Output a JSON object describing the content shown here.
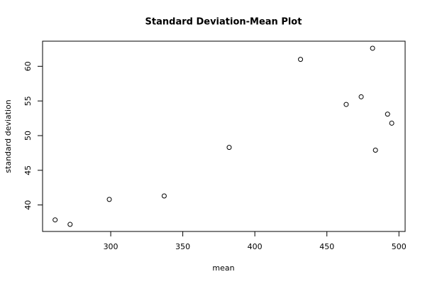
{
  "chart_data": {
    "type": "scatter",
    "title": "Standard Deviation-Mean Plot",
    "x_label": "mean",
    "y_label": "standard deviation",
    "x": [
      261.4,
      271.8,
      299,
      337.1,
      382.2,
      431.7,
      463.4,
      473.8,
      481.7,
      483.7,
      492.1,
      495.0
    ],
    "values": [
      37.85,
      37.2,
      40.8,
      41.3,
      48.3,
      61.0,
      54.5,
      55.6,
      62.6,
      47.9,
      53.1,
      51.8
    ],
    "color": "#000000",
    "xlim": [
      252.7,
      504.3
    ],
    "xticks": [
      300,
      350,
      400,
      450,
      500
    ],
    "ylim": [
      36.18,
      63.62
    ],
    "yticks": [
      40,
      45,
      50,
      55,
      60
    ],
    "grid": false
  }
}
